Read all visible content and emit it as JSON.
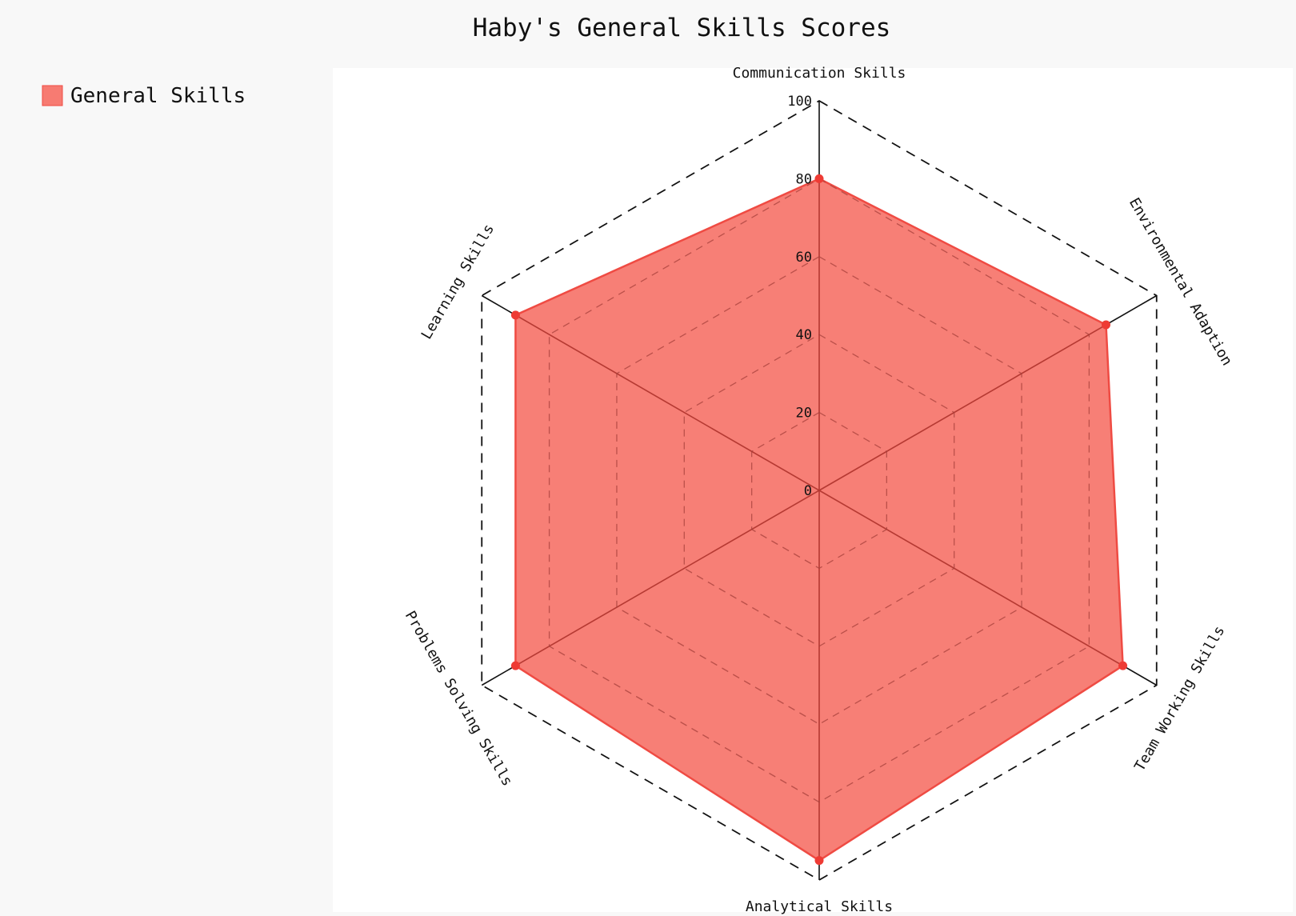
{
  "chart_data": {
    "type": "radar",
    "title": "Haby's General Skills Scores",
    "categories": [
      "Communication Skills",
      "Environmental Adaption",
      "Team Working Skills",
      "Analytical Skills",
      "Problems Solving Skills",
      "Learning Skills"
    ],
    "series": [
      {
        "name": "General Skills",
        "values": [
          80,
          85,
          90,
          95,
          90,
          90
        ]
      }
    ],
    "rlim": [
      0,
      100
    ],
    "rticks": [
      0,
      20,
      40,
      60,
      80,
      100
    ],
    "legend_position": "top-left",
    "grid": true,
    "colors": {
      "fill": "#f77b72",
      "edge": "#ef4b43",
      "marker": "#ee3b34",
      "spoke": "#b63a33",
      "frame": "#111111",
      "plot_bg": "#ffffff",
      "page_bg": "#f8f8f8"
    }
  }
}
